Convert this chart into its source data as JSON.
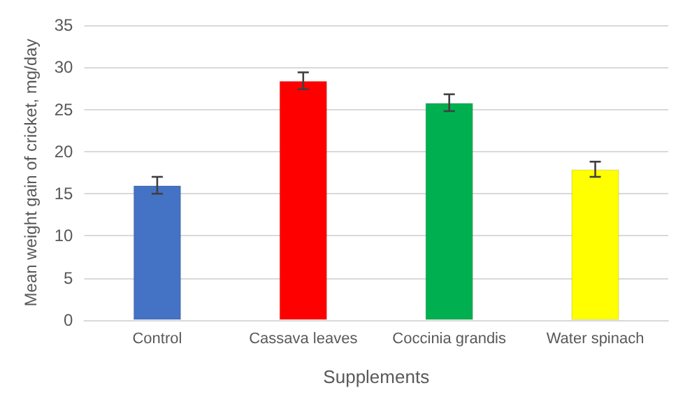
{
  "chart_data": {
    "type": "bar",
    "xlabel": "Supplements",
    "ylabel": "Mean weight gain of cricket, mg/day",
    "categories": [
      "Control",
      "Cassava leaves",
      "Coccinia grandis",
      "Water spinach"
    ],
    "values": [
      16,
      28.4,
      25.8,
      17.9
    ],
    "colors": [
      "#4472c4",
      "#ff0000",
      "#00b050",
      "#ffff00"
    ],
    "errors": [
      1,
      1,
      1,
      0.9
    ],
    "ylim": [
      0,
      35
    ],
    "yticks": [
      0,
      5,
      10,
      15,
      20,
      25,
      30,
      35
    ],
    "grid": "y"
  }
}
